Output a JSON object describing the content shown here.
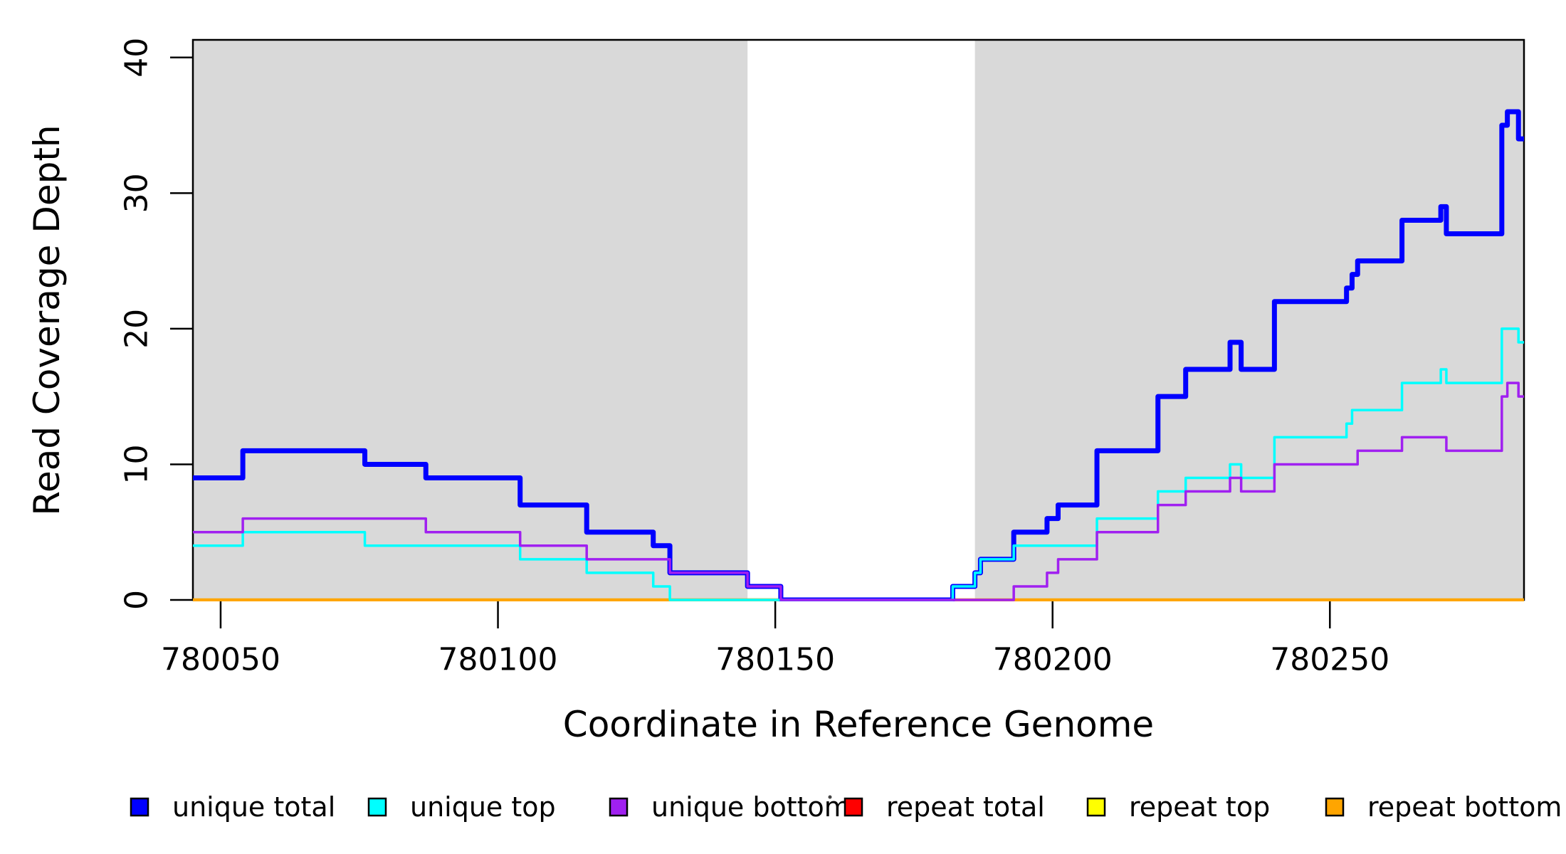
{
  "chart_data": {
    "type": "line",
    "subtype": "step-coverage-plot",
    "title": "",
    "xlabel": "Coordinate in Reference Genome",
    "ylabel": "Read Coverage Depth",
    "xlim": [
      780045,
      780285
    ],
    "ylim": [
      0,
      41.3
    ],
    "x_ticks": [
      780050,
      780100,
      780150,
      780200,
      780250
    ],
    "y_ticks": [
      0,
      10,
      20,
      30,
      40
    ],
    "grid": false,
    "legend_position": "bottom",
    "shaded_regions": {
      "color": "#d9d9d9",
      "ranges": [
        [
          780045,
          780145
        ],
        [
          780186,
          780285
        ]
      ]
    },
    "axis_color": "#000000",
    "draw_order": [
      "repeat total",
      "repeat top",
      "repeat bottom",
      "unique total",
      "unique top",
      "unique bottom"
    ],
    "series": [
      {
        "name": "unique total",
        "color": "#0000ff",
        "line_width": 7,
        "steps": [
          [
            780045,
            9
          ],
          [
            780054,
            11
          ],
          [
            780076,
            10
          ],
          [
            780087,
            9
          ],
          [
            780104,
            7
          ],
          [
            780116,
            5
          ],
          [
            780128,
            4
          ],
          [
            780131,
            2
          ],
          [
            780145,
            1
          ],
          [
            780151,
            0
          ],
          [
            780182,
            1
          ],
          [
            780186,
            2
          ],
          [
            780187,
            3
          ],
          [
            780193,
            5
          ],
          [
            780199,
            6
          ],
          [
            780201,
            7
          ],
          [
            780208,
            11
          ],
          [
            780219,
            15
          ],
          [
            780224,
            17
          ],
          [
            780232,
            19
          ],
          [
            780234,
            17
          ],
          [
            780240,
            22
          ],
          [
            780253,
            23
          ],
          [
            780254,
            24
          ],
          [
            780255,
            25
          ],
          [
            780263,
            28
          ],
          [
            780270,
            29
          ],
          [
            780271,
            27
          ],
          [
            780281,
            35
          ],
          [
            780282,
            36
          ],
          [
            780284,
            34
          ]
        ]
      },
      {
        "name": "unique top",
        "color": "#00ffff",
        "line_width": 3.5,
        "steps": [
          [
            780045,
            4
          ],
          [
            780054,
            5
          ],
          [
            780076,
            4
          ],
          [
            780104,
            3
          ],
          [
            780116,
            2
          ],
          [
            780128,
            1
          ],
          [
            780131,
            0
          ],
          [
            780182,
            1
          ],
          [
            780186,
            2
          ],
          [
            780187,
            3
          ],
          [
            780193,
            4
          ],
          [
            780208,
            6
          ],
          [
            780219,
            8
          ],
          [
            780224,
            9
          ],
          [
            780232,
            10
          ],
          [
            780234,
            9
          ],
          [
            780240,
            12
          ],
          [
            780253,
            13
          ],
          [
            780254,
            14
          ],
          [
            780263,
            16
          ],
          [
            780270,
            17
          ],
          [
            780271,
            16
          ],
          [
            780281,
            20
          ],
          [
            780284,
            19
          ]
        ]
      },
      {
        "name": "unique bottom",
        "color": "#a020f0",
        "line_width": 3.5,
        "steps": [
          [
            780045,
            5
          ],
          [
            780054,
            6
          ],
          [
            780087,
            5
          ],
          [
            780104,
            4
          ],
          [
            780116,
            3
          ],
          [
            780131,
            2
          ],
          [
            780145,
            1
          ],
          [
            780151,
            0
          ],
          [
            780193,
            1
          ],
          [
            780199,
            2
          ],
          [
            780201,
            3
          ],
          [
            780208,
            5
          ],
          [
            780219,
            7
          ],
          [
            780224,
            8
          ],
          [
            780232,
            9
          ],
          [
            780234,
            8
          ],
          [
            780240,
            10
          ],
          [
            780255,
            11
          ],
          [
            780263,
            12
          ],
          [
            780271,
            11
          ],
          [
            780281,
            15
          ],
          [
            780282,
            16
          ],
          [
            780284,
            15
          ]
        ]
      },
      {
        "name": "repeat total",
        "color": "#ff0000",
        "line_width": 3.5,
        "steps": [
          [
            780045,
            0
          ]
        ]
      },
      {
        "name": "repeat top",
        "color": "#ffff00",
        "line_width": 3.5,
        "steps": [
          [
            780045,
            0
          ]
        ]
      },
      {
        "name": "repeat bottom",
        "color": "#ffa500",
        "line_width": 4.5,
        "steps": [
          [
            780045,
            0
          ]
        ]
      }
    ]
  },
  "legend": {
    "items": [
      {
        "label": "unique total",
        "color": "#0000ff"
      },
      {
        "label": "unique top",
        "color": "#00ffff"
      },
      {
        "label": "unique bottom",
        "color": "#a020f0"
      },
      {
        "label": "repeat total",
        "color": "#ff0000"
      },
      {
        "label": "repeat top",
        "color": "#ffff00"
      },
      {
        "label": "repeat bottom",
        "color": "#ffa500"
      }
    ]
  }
}
